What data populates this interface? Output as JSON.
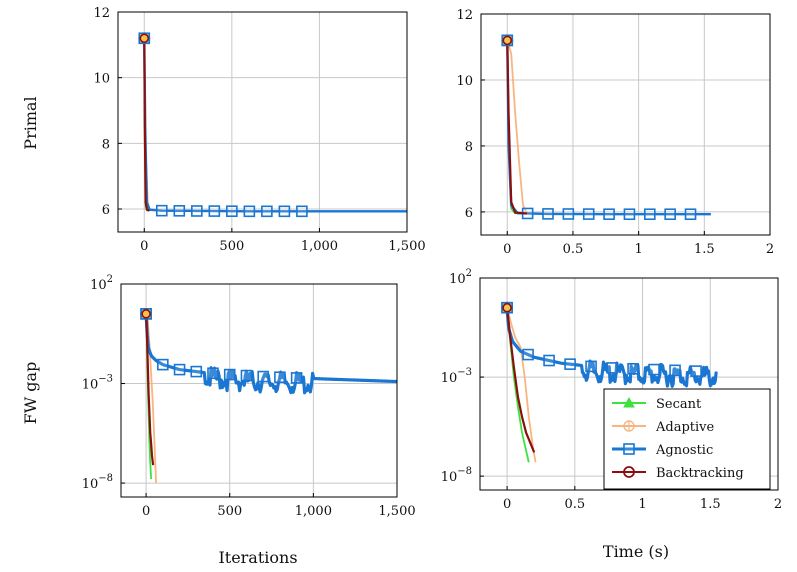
{
  "figure": {
    "ylabel_top": "Primal",
    "ylabel_bottom": "FW gap",
    "xlabel_left": "Iterations",
    "xlabel_right": "Time (s)"
  },
  "legend": {
    "position": "lower-right of bottom-right panel",
    "entries": [
      {
        "name": "Secant",
        "color": "#3ee23e",
        "marker": "triangle"
      },
      {
        "name": "Adaptive",
        "color": "#f9b57f",
        "marker": "circle-plus"
      },
      {
        "name": "Agnostic",
        "color": "#1976d2",
        "marker": "square"
      },
      {
        "name": "Backtracking",
        "color": "#8b0f0f",
        "marker": "circle"
      }
    ]
  },
  "chart_data": [
    {
      "type": "line",
      "panel": "top-left",
      "ylabel": "Primal",
      "xlim": [
        -150,
        1500
      ],
      "ylim": [
        5.3,
        12
      ],
      "xticks": [
        0,
        500,
        1000,
        1500
      ],
      "xtick_labels": [
        "0",
        "500",
        "1,000",
        "1,500"
      ],
      "yticks": [
        6,
        8,
        10,
        12
      ],
      "ytick_labels": [
        "6",
        "8",
        "10",
        "12"
      ],
      "grid": true,
      "series": [
        {
          "name": "Agnostic",
          "x": [
            0,
            5,
            15,
            30,
            100,
            300,
            600,
            1000,
            1500
          ],
          "y": [
            11.2,
            8.5,
            6.2,
            5.98,
            5.95,
            5.94,
            5.93,
            5.93,
            5.93
          ],
          "markers_x": [
            0,
            100,
            200,
            300,
            400,
            500,
            600,
            700,
            800,
            900
          ]
        },
        {
          "name": "Adaptive",
          "x": [
            0,
            4,
            10,
            20,
            30,
            50
          ],
          "y": [
            11.2,
            10.0,
            7.5,
            6.2,
            6.0,
            5.95
          ]
        },
        {
          "name": "Secant",
          "x": [
            0,
            3,
            8,
            15,
            30
          ],
          "y": [
            11.2,
            8.0,
            6.1,
            5.96,
            5.95
          ]
        },
        {
          "name": "Backtracking",
          "x": [
            0,
            3,
            8,
            15,
            30
          ],
          "y": [
            11.2,
            8.5,
            6.2,
            5.98,
            5.95
          ]
        }
      ]
    },
    {
      "type": "line",
      "panel": "top-right",
      "xlim": [
        -0.2,
        2
      ],
      "ylim": [
        5.3,
        12
      ],
      "xticks": [
        0,
        0.5,
        1,
        1.5,
        2
      ],
      "xtick_labels": [
        "0",
        "0.5",
        "1",
        "1.5",
        "2"
      ],
      "yticks": [
        6,
        8,
        10,
        12
      ],
      "ytick_labels": [
        "6",
        "8",
        "10",
        "12"
      ],
      "grid": true,
      "series": [
        {
          "name": "Agnostic",
          "x": [
            0,
            0.01,
            0.03,
            0.08,
            0.3,
            0.8,
            1.55
          ],
          "y": [
            11.2,
            8.0,
            6.2,
            5.96,
            5.94,
            5.93,
            5.93
          ],
          "markers_x": [
            0,
            0.155,
            0.31,
            0.465,
            0.62,
            0.775,
            0.93,
            1.085,
            1.24,
            1.395
          ]
        },
        {
          "name": "Adaptive",
          "x": [
            0,
            0.03,
            0.06,
            0.09,
            0.12,
            0.15
          ],
          "y": [
            11.2,
            10.8,
            9.0,
            7.5,
            6.2,
            5.95
          ]
        },
        {
          "name": "Secant",
          "x": [
            0,
            0.01,
            0.03,
            0.06,
            0.1
          ],
          "y": [
            11.2,
            8.0,
            6.1,
            5.96,
            5.95
          ]
        },
        {
          "name": "Backtracking",
          "x": [
            0,
            0.01,
            0.03,
            0.06,
            0.15
          ],
          "y": [
            11.2,
            9.0,
            6.3,
            5.98,
            5.95
          ]
        }
      ]
    },
    {
      "type": "line",
      "panel": "bottom-left",
      "ylabel": "FW gap",
      "xlabel": "Iterations",
      "yscale": "log",
      "xlim": [
        -150,
        1500
      ],
      "ylim_exp": [
        -8.7,
        2
      ],
      "xticks": [
        0,
        500,
        1000,
        1500
      ],
      "xtick_labels": [
        "0",
        "500",
        "1,000",
        "1,500"
      ],
      "yticks_exp": [
        -8,
        -3,
        2
      ],
      "grid": true,
      "series": [
        {
          "name": "Agnostic",
          "x": [
            0,
            10,
            30,
            60,
            100,
            200,
            350,
            500,
            700,
            1000,
            1500
          ],
          "log10_y": [
            0.5,
            -1.1,
            -1.6,
            -1.85,
            -2.05,
            -2.3,
            -2.45,
            -2.55,
            -2.65,
            -2.75,
            -2.9
          ],
          "noisy_x_range": [
            350,
            1000
          ],
          "markers_x": [
            0,
            100,
            200,
            300,
            400,
            500,
            600,
            700,
            800,
            900
          ]
        },
        {
          "name": "Adaptive",
          "x": [
            0,
            10,
            20,
            30,
            40,
            50,
            60
          ],
          "log10_y": [
            0.5,
            0.2,
            -1.0,
            -2.5,
            -4.0,
            -6.0,
            -8.0
          ]
        },
        {
          "name": "Secant",
          "x": [
            0,
            5,
            10,
            15,
            20,
            25,
            30
          ],
          "log10_y": [
            0.5,
            -1.0,
            -3.0,
            -4.5,
            -6.0,
            -7.0,
            -7.8
          ]
        },
        {
          "name": "Backtracking",
          "x": [
            0,
            5,
            10,
            15,
            20,
            25,
            30,
            35,
            42
          ],
          "log10_y": [
            0.5,
            -0.5,
            -2.0,
            -3.5,
            -4.5,
            -5.5,
            -6.0,
            -6.6,
            -7.1
          ]
        }
      ]
    },
    {
      "type": "line",
      "panel": "bottom-right",
      "xlabel": "Time (s)",
      "yscale": "log",
      "xlim": [
        -0.2,
        2
      ],
      "ylim_exp": [
        -8.7,
        2
      ],
      "xticks": [
        0,
        0.5,
        1,
        1.5,
        2
      ],
      "xtick_labels": [
        "0",
        "0.5",
        "1",
        "1.5",
        "2"
      ],
      "yticks_exp": [
        -8,
        -3,
        2
      ],
      "grid": true,
      "series": [
        {
          "name": "Agnostic",
          "x": [
            0,
            0.01,
            0.04,
            0.1,
            0.2,
            0.4,
            0.6,
            0.8,
            1.0,
            1.2,
            1.4,
            1.55
          ],
          "log10_y": [
            0.5,
            -0.5,
            -1.2,
            -1.7,
            -2.0,
            -2.3,
            -2.45,
            -2.55,
            -2.6,
            -2.65,
            -2.7,
            -2.75
          ],
          "noisy_x_range": [
            0.55,
            1.55
          ],
          "markers_x": [
            0,
            0.155,
            0.31,
            0.465,
            0.62,
            0.775,
            0.93,
            1.085,
            1.24,
            1.395
          ]
        },
        {
          "name": "Adaptive",
          "x": [
            0,
            0.03,
            0.06,
            0.1,
            0.13,
            0.16,
            0.19,
            0.21
          ],
          "log10_y": [
            0.5,
            -0.3,
            -1.0,
            -1.5,
            -3.0,
            -5.0,
            -6.5,
            -7.3
          ]
        },
        {
          "name": "Secant",
          "x": [
            0,
            0.02,
            0.05,
            0.08,
            0.11,
            0.14,
            0.16
          ],
          "log10_y": [
            0.5,
            -1.0,
            -3.0,
            -4.5,
            -5.8,
            -6.7,
            -7.3
          ]
        },
        {
          "name": "Backtracking",
          "x": [
            0,
            0.02,
            0.05,
            0.08,
            0.11,
            0.14,
            0.17,
            0.2
          ],
          "log10_y": [
            0.5,
            -0.8,
            -2.5,
            -4.0,
            -5.0,
            -5.8,
            -6.3,
            -6.8
          ]
        }
      ]
    }
  ]
}
